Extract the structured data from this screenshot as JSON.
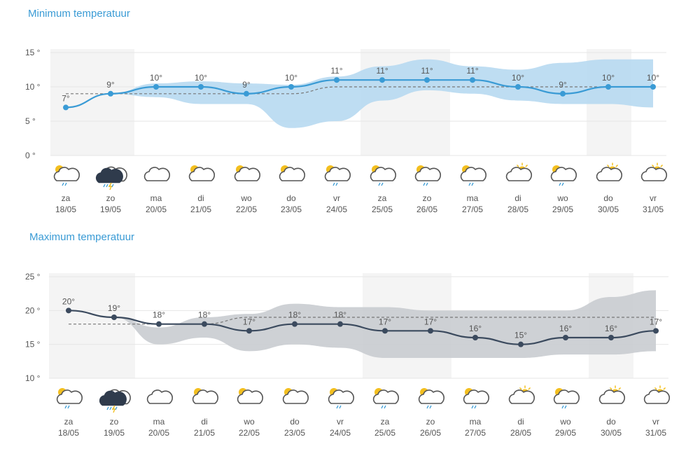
{
  "chart_data": [
    {
      "type": "line",
      "title": "Minimum temperatuur",
      "y_ticks": [
        "15 °",
        "10 °",
        "5 °",
        "0 °"
      ],
      "ylim": [
        0,
        15
      ],
      "days": [
        "za",
        "zo",
        "ma",
        "di",
        "wo",
        "do",
        "vr",
        "za",
        "zo",
        "ma",
        "di",
        "wo",
        "do",
        "vr"
      ],
      "dates": [
        "18/05",
        "19/05",
        "20/05",
        "21/05",
        "22/05",
        "23/05",
        "24/05",
        "25/05",
        "26/05",
        "27/05",
        "28/05",
        "29/05",
        "30/05",
        "31/05"
      ],
      "value_labels": [
        "7°",
        "9°",
        "10°",
        "10°",
        "9°",
        "10°",
        "11°",
        "11°",
        "11°",
        "11°",
        "10°",
        "9°",
        "10°",
        "10°"
      ],
      "values": [
        7,
        9,
        10,
        10,
        9,
        10,
        11,
        11,
        11,
        11,
        10,
        9,
        10,
        10
      ],
      "band_upper": [
        null,
        9,
        10.5,
        10.8,
        10.5,
        10.3,
        11.5,
        13,
        14,
        13,
        12.5,
        13.5,
        14,
        14
      ],
      "band_lower": [
        null,
        9,
        8.5,
        7.5,
        7.5,
        4,
        5,
        8,
        9.5,
        9,
        8,
        7.5,
        7.5,
        7
      ],
      "normal": [
        9,
        9,
        9,
        9,
        9,
        9,
        10,
        10,
        10,
        10,
        10,
        10,
        10,
        10
      ],
      "weather_icons": [
        "sun-cloud-rain-icon",
        "storm-cloud-icon",
        "cloud-icon",
        "sun-cloud-icon",
        "sun-cloud-icon",
        "sun-cloud-icon",
        "sun-cloud-rain-icon",
        "sun-cloud-rain-icon",
        "sun-cloud-rain-icon",
        "sun-cloud-rain-icon",
        "sun-cloud-icon",
        "sun-cloud-rain-icon",
        "sun-cloud-icon",
        "sun-cloud-icon"
      ],
      "weekend_columns": [
        0,
        1,
        7,
        8,
        12,
        13
      ],
      "colors": {
        "line": "#3a9bd5",
        "band": "#b7d9f1",
        "normal": "#777777",
        "weekend": "#f4f4f4"
      }
    },
    {
      "type": "line",
      "title": "Maximum temperatuur",
      "y_ticks": [
        "25 °",
        "20 °",
        "15 °",
        "10 °"
      ],
      "ylim": [
        10,
        25
      ],
      "days": [
        "za",
        "zo",
        "ma",
        "di",
        "wo",
        "do",
        "vr",
        "za",
        "zo",
        "ma",
        "di",
        "wo",
        "do",
        "vr"
      ],
      "dates": [
        "18/05",
        "19/05",
        "20/05",
        "21/05",
        "22/05",
        "23/05",
        "24/05",
        "25/05",
        "26/05",
        "27/05",
        "28/05",
        "29/05",
        "30/05",
        "31/05"
      ],
      "value_labels": [
        "20°",
        "19°",
        "18°",
        "18°",
        "17°",
        "18°",
        "18°",
        "17°",
        "17°",
        "16°",
        "15°",
        "16°",
        "16°",
        "17°"
      ],
      "values": [
        20,
        19,
        18,
        18,
        17,
        18,
        18,
        17,
        17,
        16,
        15,
        16,
        16,
        17
      ],
      "band_upper": [
        null,
        19,
        17.5,
        19,
        19.5,
        21,
        20.5,
        20.5,
        20,
        20,
        20,
        20,
        22,
        23
      ],
      "band_lower": [
        null,
        19,
        15,
        16,
        14,
        15,
        14.5,
        13,
        13,
        13,
        13,
        13.5,
        13.5,
        14
      ],
      "normal": [
        18,
        18,
        18,
        18,
        19,
        19,
        19,
        19,
        19,
        19,
        19,
        19,
        19,
        19
      ],
      "weather_icons": [
        "sun-cloud-rain-icon",
        "storm-cloud-icon",
        "cloud-icon",
        "sun-cloud-icon",
        "sun-cloud-icon",
        "sun-cloud-icon",
        "sun-cloud-rain-icon",
        "sun-cloud-rain-icon",
        "sun-cloud-rain-icon",
        "sun-cloud-rain-icon",
        "sun-cloud-icon",
        "sun-cloud-rain-icon",
        "sun-cloud-icon",
        "sun-cloud-icon"
      ],
      "weekend_columns": [
        0,
        1,
        7,
        8,
        12,
        13
      ],
      "colors": {
        "line": "#3b4a5e",
        "band": "#c9ccd0",
        "normal": "#777777",
        "weekend": "#f4f4f4"
      }
    }
  ]
}
